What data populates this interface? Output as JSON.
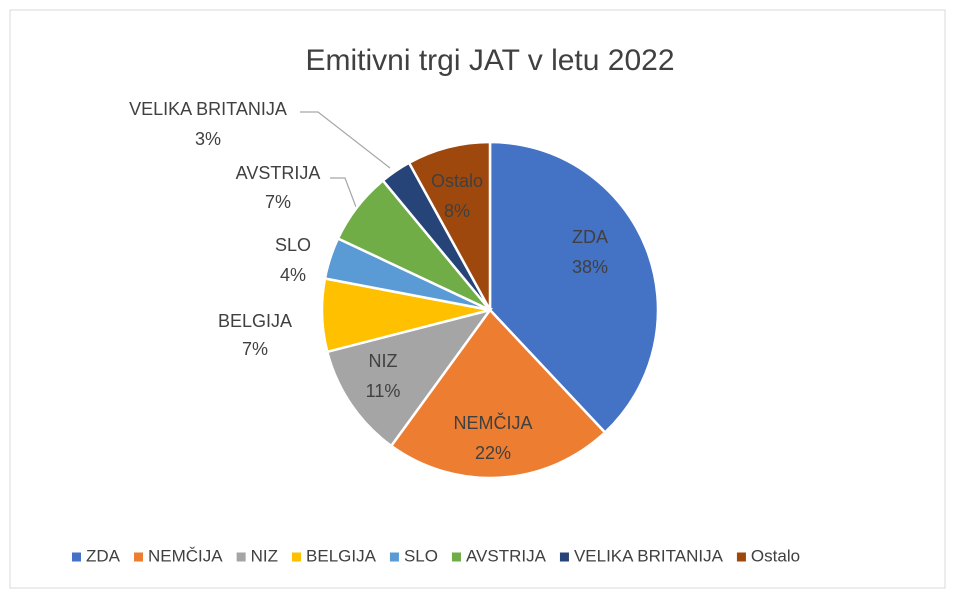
{
  "chart_data": {
    "type": "pie",
    "title": "Emitivni trgi JAT v letu 2022",
    "categories": [
      "ZDA",
      "NEMČIJA",
      "NIZ",
      "BELGIJA",
      "SLO",
      "AVSTRIJA",
      "VELIKA BRITANIJA",
      "Ostalo"
    ],
    "values": [
      38,
      22,
      11,
      7,
      4,
      7,
      3,
      8
    ],
    "value_labels": [
      "38%",
      "22%",
      "11%",
      "7%",
      "4%",
      "7%",
      "3%",
      "8%"
    ],
    "colors": [
      "#4472c4",
      "#ed7d31",
      "#a5a5a5",
      "#ffc000",
      "#5b9bd5",
      "#70ad47",
      "#264478",
      "#9e480e"
    ],
    "legend": "bottom"
  }
}
